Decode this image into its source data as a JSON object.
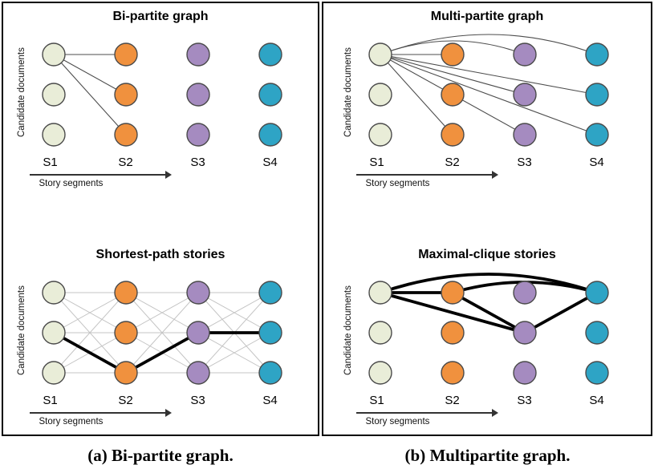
{
  "captions": {
    "a": "(a) Bi-partite graph.",
    "b": "(b) Multipartite graph."
  },
  "axis": {
    "y_label": "Candidate documents",
    "x_label": "Story segments",
    "ticks": [
      "S1",
      "S2",
      "S3",
      "S4"
    ]
  },
  "colors": {
    "columns": [
      "#e9edd8",
      "#f0913e",
      "#a58bc0",
      "#2ea4c5"
    ],
    "outline": "#4a4a4a",
    "edge_thin": "#4d4d4d",
    "edge_gray": "#c4c4c4",
    "edge_bold": "#000000"
  },
  "panels": [
    {
      "id": "bipartite",
      "title": "Bi-partite graph",
      "edges": [
        {
          "f": [
            0,
            0
          ],
          "t": [
            1,
            0
          ],
          "s": "thin"
        },
        {
          "f": [
            0,
            0
          ],
          "t": [
            1,
            1
          ],
          "s": "thin"
        },
        {
          "f": [
            0,
            0
          ],
          "t": [
            1,
            2
          ],
          "s": "thin"
        }
      ]
    },
    {
      "id": "multipartite",
      "title": "Multi-partite graph",
      "edges": [
        {
          "f": [
            0,
            0
          ],
          "t": [
            1,
            0
          ],
          "s": "thin"
        },
        {
          "f": [
            0,
            0
          ],
          "t": [
            1,
            2
          ],
          "s": "thin"
        },
        {
          "f": [
            0,
            0
          ],
          "t": [
            2,
            0
          ],
          "s": "thin",
          "c": -34
        },
        {
          "f": [
            0,
            0
          ],
          "t": [
            2,
            1
          ],
          "s": "thin"
        },
        {
          "f": [
            0,
            0
          ],
          "t": [
            2,
            2
          ],
          "s": "thin"
        },
        {
          "f": [
            0,
            0
          ],
          "t": [
            3,
            0
          ],
          "s": "thin",
          "c": -50
        },
        {
          "f": [
            0,
            0
          ],
          "t": [
            3,
            1
          ],
          "s": "thin"
        },
        {
          "f": [
            0,
            0
          ],
          "t": [
            3,
            2
          ],
          "s": "thin"
        }
      ]
    },
    {
      "id": "shortest-path",
      "title": "Shortest-path stories",
      "edges": [
        {
          "f": [
            0,
            0
          ],
          "t": [
            1,
            0
          ],
          "s": "gray"
        },
        {
          "f": [
            0,
            0
          ],
          "t": [
            1,
            1
          ],
          "s": "gray"
        },
        {
          "f": [
            0,
            0
          ],
          "t": [
            1,
            2
          ],
          "s": "gray"
        },
        {
          "f": [
            0,
            1
          ],
          "t": [
            1,
            0
          ],
          "s": "gray"
        },
        {
          "f": [
            0,
            1
          ],
          "t": [
            1,
            1
          ],
          "s": "gray"
        },
        {
          "f": [
            0,
            1
          ],
          "t": [
            1,
            2
          ],
          "s": "gray"
        },
        {
          "f": [
            0,
            2
          ],
          "t": [
            1,
            0
          ],
          "s": "gray"
        },
        {
          "f": [
            0,
            2
          ],
          "t": [
            1,
            1
          ],
          "s": "gray"
        },
        {
          "f": [
            0,
            2
          ],
          "t": [
            1,
            2
          ],
          "s": "gray"
        },
        {
          "f": [
            1,
            0
          ],
          "t": [
            2,
            0
          ],
          "s": "gray"
        },
        {
          "f": [
            1,
            0
          ],
          "t": [
            2,
            1
          ],
          "s": "gray"
        },
        {
          "f": [
            1,
            0
          ],
          "t": [
            2,
            2
          ],
          "s": "gray"
        },
        {
          "f": [
            1,
            1
          ],
          "t": [
            2,
            0
          ],
          "s": "gray"
        },
        {
          "f": [
            1,
            1
          ],
          "t": [
            2,
            1
          ],
          "s": "gray"
        },
        {
          "f": [
            1,
            1
          ],
          "t": [
            2,
            2
          ],
          "s": "gray"
        },
        {
          "f": [
            1,
            2
          ],
          "t": [
            2,
            0
          ],
          "s": "gray"
        },
        {
          "f": [
            1,
            2
          ],
          "t": [
            2,
            1
          ],
          "s": "gray"
        },
        {
          "f": [
            1,
            2
          ],
          "t": [
            2,
            2
          ],
          "s": "gray"
        },
        {
          "f": [
            2,
            0
          ],
          "t": [
            3,
            0
          ],
          "s": "gray"
        },
        {
          "f": [
            2,
            0
          ],
          "t": [
            3,
            1
          ],
          "s": "gray"
        },
        {
          "f": [
            2,
            0
          ],
          "t": [
            3,
            2
          ],
          "s": "gray"
        },
        {
          "f": [
            2,
            1
          ],
          "t": [
            3,
            0
          ],
          "s": "gray"
        },
        {
          "f": [
            2,
            1
          ],
          "t": [
            3,
            1
          ],
          "s": "gray"
        },
        {
          "f": [
            2,
            1
          ],
          "t": [
            3,
            2
          ],
          "s": "gray"
        },
        {
          "f": [
            2,
            2
          ],
          "t": [
            3,
            0
          ],
          "s": "gray"
        },
        {
          "f": [
            2,
            2
          ],
          "t": [
            3,
            1
          ],
          "s": "gray"
        },
        {
          "f": [
            2,
            2
          ],
          "t": [
            3,
            2
          ],
          "s": "gray"
        },
        {
          "f": [
            0,
            1
          ],
          "t": [
            1,
            2
          ],
          "s": "bold"
        },
        {
          "f": [
            1,
            2
          ],
          "t": [
            2,
            1
          ],
          "s": "bold"
        },
        {
          "f": [
            2,
            1
          ],
          "t": [
            3,
            1
          ],
          "s": "bold"
        }
      ]
    },
    {
      "id": "maximal-clique",
      "title": "Maximal-clique stories",
      "edges": [
        {
          "f": [
            0,
            0
          ],
          "t": [
            1,
            0
          ],
          "s": "bold"
        },
        {
          "f": [
            0,
            0
          ],
          "t": [
            2,
            1
          ],
          "s": "bold"
        },
        {
          "f": [
            1,
            0
          ],
          "t": [
            2,
            1
          ],
          "s": "bold"
        },
        {
          "f": [
            2,
            1
          ],
          "t": [
            3,
            0
          ],
          "s": "bold"
        },
        {
          "f": [
            1,
            0
          ],
          "t": [
            3,
            0
          ],
          "s": "bold",
          "c": -26
        },
        {
          "f": [
            0,
            0
          ],
          "t": [
            3,
            0
          ],
          "s": "bold",
          "c": -46
        }
      ]
    }
  ]
}
